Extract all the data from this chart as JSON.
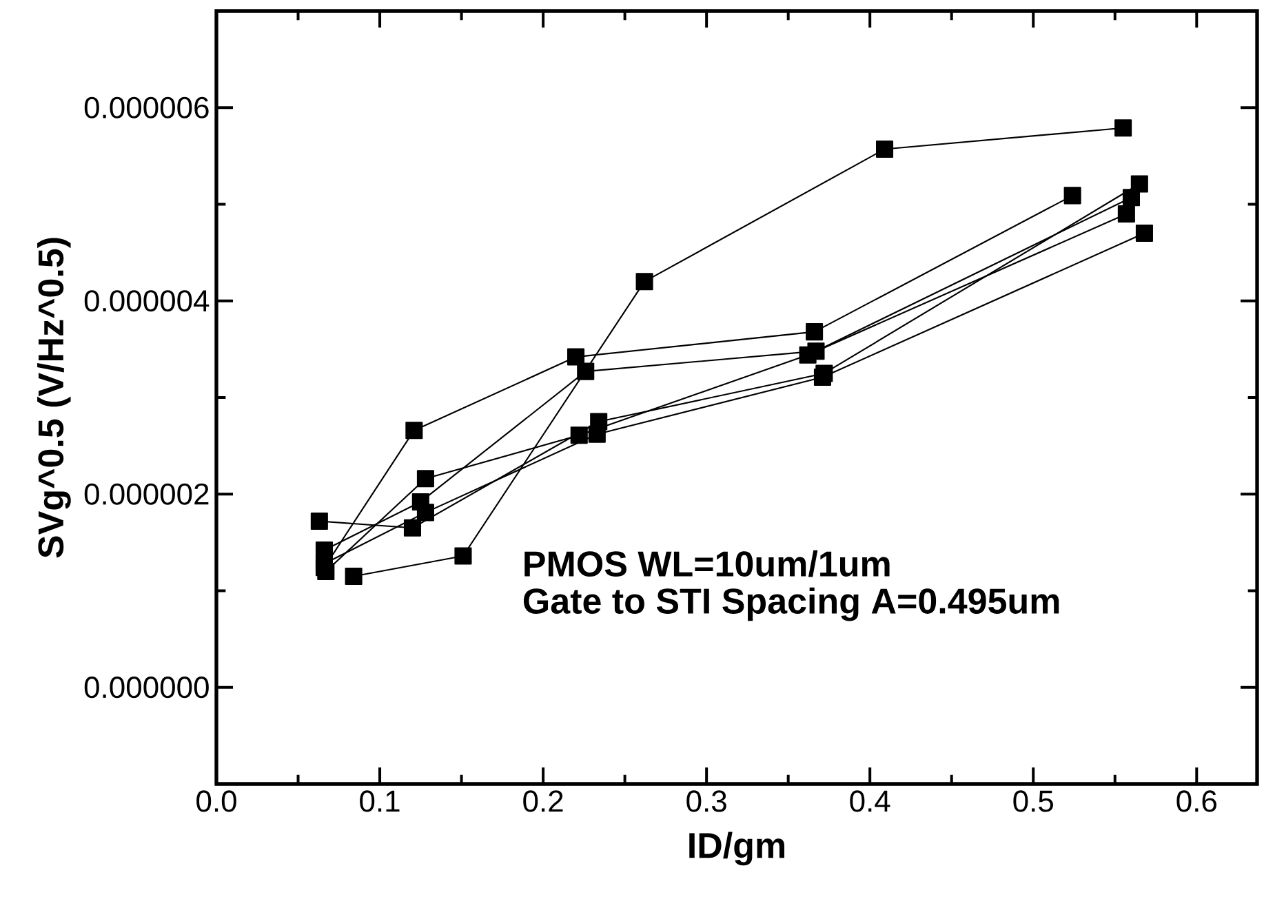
{
  "chart_data": {
    "type": "line",
    "xlabel": "ID/gm",
    "ylabel": "SVg^0.5 (V/Hz^0.5)",
    "xlim": [
      0,
      0.637
    ],
    "ylim": [
      -1e-06,
      7e-06
    ],
    "xticks": [
      {
        "value": 0,
        "label": "0.0"
      },
      0.1,
      0.2,
      0.3,
      0.4,
      0.5,
      0.6
    ],
    "yticks": [
      {
        "value": 0,
        "label": "0.000000"
      },
      {
        "value": 2e-06,
        "label": "0.000002"
      },
      {
        "value": 4e-06,
        "label": "0.000004"
      },
      {
        "value": 6e-06,
        "label": "0.000006"
      }
    ],
    "marker": "square",
    "line_style": "solid",
    "annotations": [
      "PMOS WL=10um/1um",
      "Gate to STI Spacing A=0.495um"
    ],
    "series": [
      {
        "color": "#000000",
        "x": [
          0.066,
          0.121,
          0.22,
          0.366,
          0.524
        ],
        "values": [
          1.24e-06,
          2.66e-06,
          3.42e-06,
          3.68e-06,
          5.09e-06
        ]
      },
      {
        "color": "#000000",
        "x": [
          0.084,
          0.151,
          0.262,
          0.409,
          0.555
        ],
        "values": [
          1.15e-06,
          1.36e-06,
          4.2e-06,
          5.57e-06,
          5.79e-06
        ]
      },
      {
        "color": "#000000",
        "x": [
          0.063,
          0.12,
          0.234,
          0.372,
          0.565
        ],
        "values": [
          1.72e-06,
          1.65e-06,
          2.75e-06,
          3.25e-06,
          5.21e-06
        ]
      },
      {
        "color": "#000000",
        "x": [
          0.066,
          0.125,
          0.226,
          0.367,
          0.56
        ],
        "values": [
          1.42e-06,
          1.92e-06,
          3.27e-06,
          3.48e-06,
          5.07e-06
        ]
      },
      {
        "color": "#000000",
        "x": [
          0.067,
          0.128,
          0.222,
          0.362,
          0.557
        ],
        "values": [
          1.2e-06,
          2.16e-06,
          2.61e-06,
          3.44e-06,
          4.9e-06
        ]
      },
      {
        "color": "#000000",
        "x": [
          0.066,
          0.128,
          0.233,
          0.371,
          0.568
        ],
        "values": [
          1.28e-06,
          1.81e-06,
          2.62e-06,
          3.21e-06,
          4.7e-06
        ]
      }
    ]
  }
}
